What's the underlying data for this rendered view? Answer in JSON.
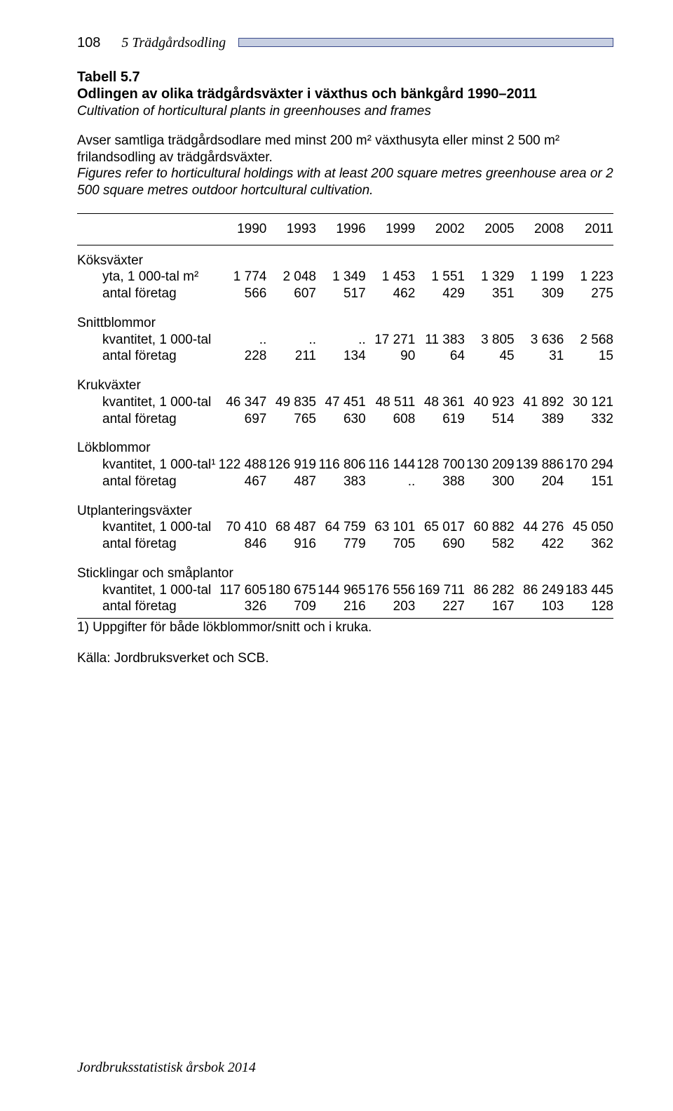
{
  "header": {
    "page_num": "108",
    "chapter": "5   Trädgårdsodling"
  },
  "table_ref": "Tabell 5.7",
  "title_sv": "Odlingen av olika trädgårdsväxter i växthus och bänkgård 1990–2011",
  "title_en": "Cultivation of horticultural plants in greenhouses and frames",
  "desc_sv": "Avser samtliga trädgårdsodlare med minst 200 m² växthusyta eller minst 2 500 m² frilandsodling av trädgårdsväxter.",
  "desc_en": "Figures refer to horticultural holdings with at least 200 square metres greenhouse area or 2 500 square metres outdoor hortcultural cultivation.",
  "years": [
    "1990",
    "1993",
    "1996",
    "1999",
    "2002",
    "2005",
    "2008",
    "2011"
  ],
  "groups": [
    {
      "name": "Köksväxter",
      "rows": [
        {
          "label": "yta, 1 000-tal m²",
          "values": [
            "1 774",
            "2 048",
            "1 349",
            "1 453",
            "1 551",
            "1 329",
            "1 199",
            "1 223"
          ]
        },
        {
          "label": "antal företag",
          "values": [
            "566",
            "607",
            "517",
            "462",
            "429",
            "351",
            "309",
            "275"
          ]
        }
      ]
    },
    {
      "name": "Snittblommor",
      "rows": [
        {
          "label": "kvantitet, 1 000-tal",
          "values": [
            "..",
            "..",
            "..",
            "17 271",
            "11 383",
            "3 805",
            "3 636",
            "2 568"
          ]
        },
        {
          "label": "antal företag",
          "values": [
            "228",
            "211",
            "134",
            "90",
            "64",
            "45",
            "31",
            "15"
          ]
        }
      ]
    },
    {
      "name": "Krukväxter",
      "rows": [
        {
          "label": "kvantitet, 1 000-tal",
          "values": [
            "46 347",
            "49 835",
            "47 451",
            "48 511",
            "48 361",
            "40 923",
            "41 892",
            "30 121"
          ]
        },
        {
          "label": "antal företag",
          "values": [
            "697",
            "765",
            "630",
            "608",
            "619",
            "514",
            "389",
            "332"
          ]
        }
      ]
    },
    {
      "name": "Lökblommor",
      "rows": [
        {
          "label": "kvantitet, 1 000-tal¹",
          "values": [
            "122 488",
            "126 919",
            "116 806",
            "116 144",
            "128 700",
            "130 209",
            "139 886",
            "170 294"
          ]
        },
        {
          "label": "antal företag",
          "values": [
            "467",
            "487",
            "383",
            "..",
            "388",
            "300",
            "204",
            "151"
          ]
        }
      ]
    },
    {
      "name": "Utplanteringsväxter",
      "rows": [
        {
          "label": "kvantitet, 1 000-tal",
          "values": [
            "70 410",
            "68 487",
            "64 759",
            "63 101",
            "65 017",
            "60 882",
            "44 276",
            "45 050"
          ]
        },
        {
          "label": "antal företag",
          "values": [
            "846",
            "916",
            "779",
            "705",
            "690",
            "582",
            "422",
            "362"
          ]
        }
      ]
    },
    {
      "name": "Sticklingar och småplantor",
      "rows": [
        {
          "label": "kvantitet, 1 000-tal",
          "values": [
            "117 605",
            "180 675",
            "144 965",
            "176 556",
            "169 711",
            "86 282",
            "86 249",
            "183 445"
          ]
        },
        {
          "label": "antal företag",
          "values": [
            "326",
            "709",
            "216",
            "203",
            "227",
            "167",
            "103",
            "128"
          ]
        }
      ]
    }
  ],
  "footnote": "1) Uppgifter för både lökblommor/snitt och i kruka.",
  "source": "Källa: Jordbruksverket och SCB.",
  "footer": "Jordbruksstatistisk årsbok 2014"
}
